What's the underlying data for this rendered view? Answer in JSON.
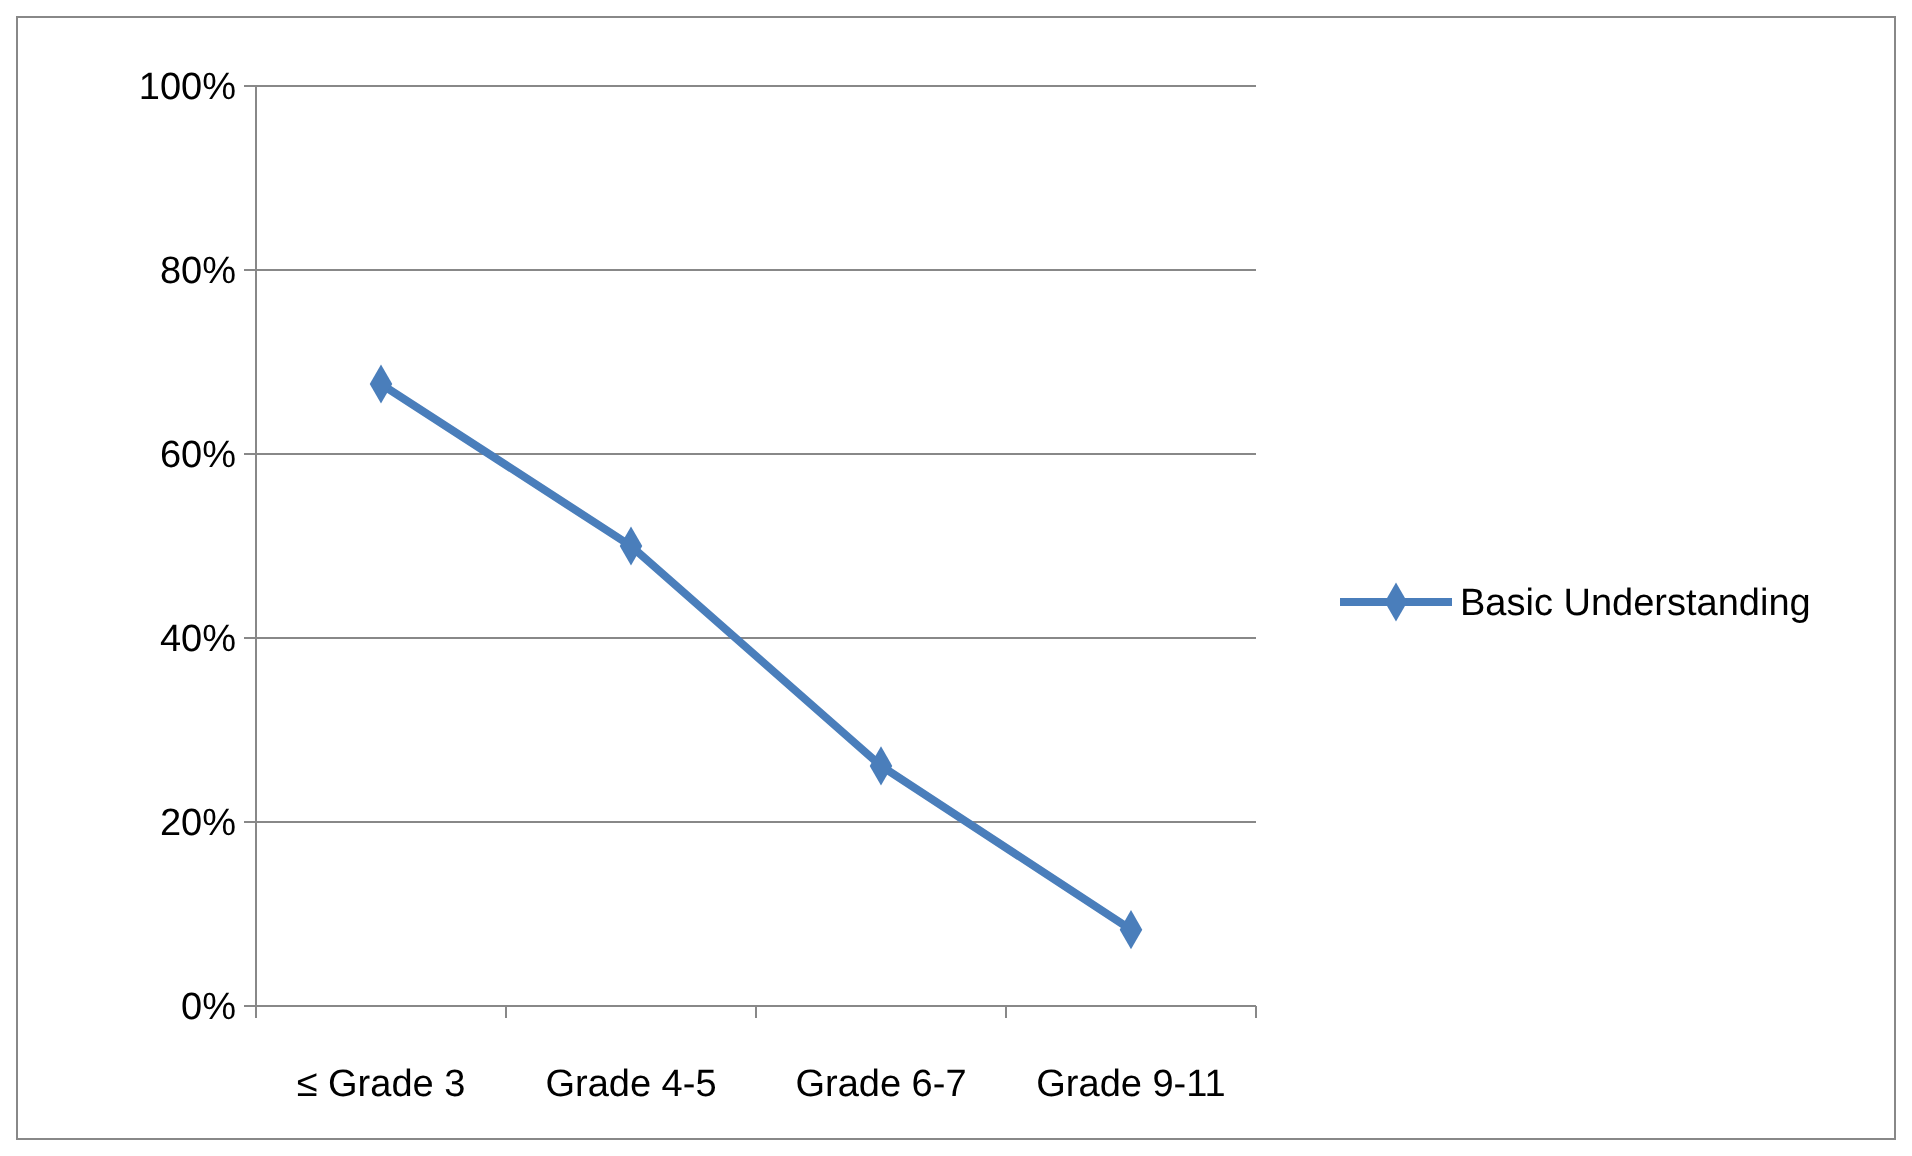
{
  "chart_data": {
    "type": "line",
    "categories": [
      "≤ Grade 3",
      "Grade 4-5",
      "Grade 6-7",
      "Grade 9-11"
    ],
    "series": [
      {
        "name": "Basic Understanding",
        "color": "#4a7ebb",
        "values": [
          67.6,
          50,
          26.1,
          8.3
        ]
      }
    ],
    "ylim": [
      0,
      100
    ],
    "yticks": [
      {
        "value": 0,
        "label": "0%"
      },
      {
        "value": 20,
        "label": "20%"
      },
      {
        "value": 40,
        "label": "40%"
      },
      {
        "value": 60,
        "label": "60%"
      },
      {
        "value": 80,
        "label": "80%"
      },
      {
        "value": 100,
        "label": "100%"
      }
    ],
    "grid": "y",
    "legend": "right",
    "marker": "diamond",
    "line_style": "solid"
  }
}
